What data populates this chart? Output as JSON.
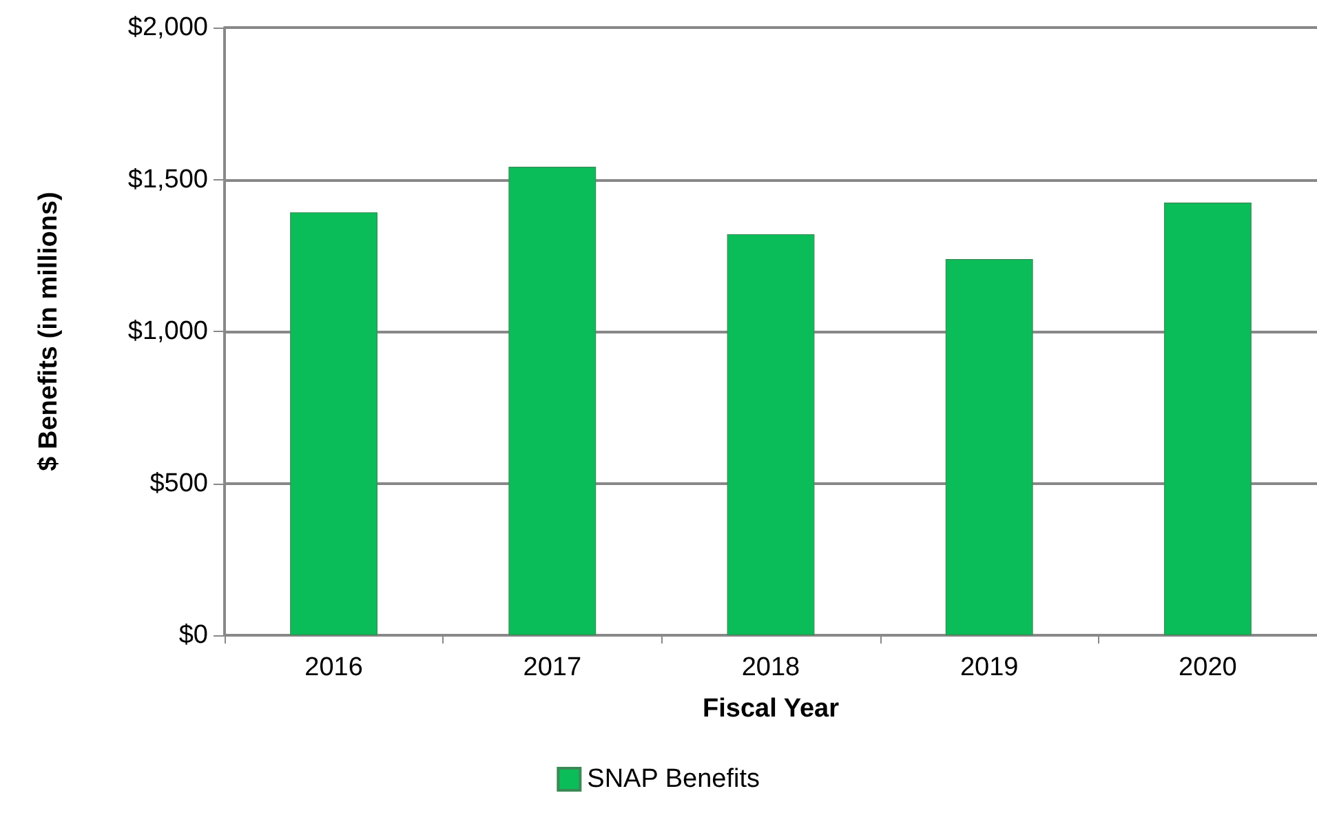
{
  "chart_data": {
    "type": "bar",
    "xlabel": "Fiscal Year",
    "ylabel": "$ Benefits (in millions)",
    "categories": [
      "2016",
      "2017",
      "2018",
      "2019",
      "2020"
    ],
    "series": [
      {
        "name": "SNAP Benefits",
        "color": "#0bbd59",
        "values": [
          1392,
          1542,
          1320,
          1238,
          1424
        ]
      }
    ],
    "ylim": [
      0,
      2000
    ],
    "yticks": [
      {
        "value": 0,
        "label": "$0"
      },
      {
        "value": 500,
        "label": "$500"
      },
      {
        "value": 1000,
        "label": "$1,000"
      },
      {
        "value": 1500,
        "label": "$1,500"
      },
      {
        "value": 2000,
        "label": "$2,000"
      }
    ],
    "grid": "y",
    "legend": "bottom"
  }
}
